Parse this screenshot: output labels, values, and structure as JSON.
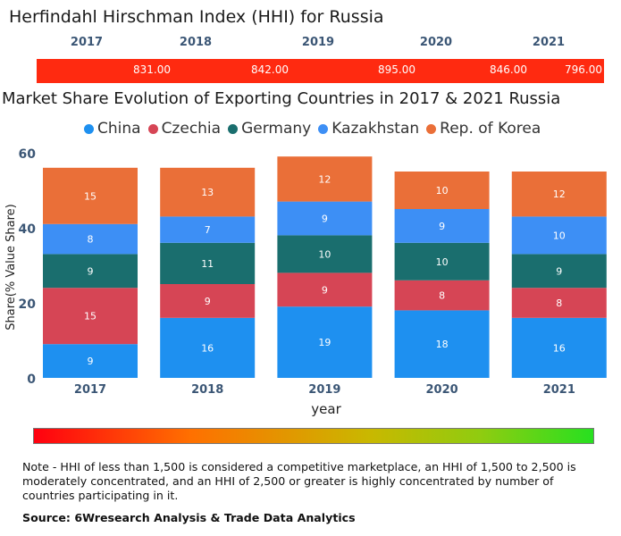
{
  "hhi": {
    "title": "Herfindahl Hirschman Index (HHI) for Russia",
    "years": [
      "2017",
      "2018",
      "2019",
      "2020",
      "2021"
    ],
    "values": [
      "831.00",
      "842.00",
      "895.00",
      "846.00",
      "796.00"
    ],
    "bar_color": "#ff2a10"
  },
  "chart_data": {
    "type": "bar",
    "stacked": true,
    "title": "Market Share Evolution of Exporting Countries in 2017 & 2021 Russia",
    "xlabel": "year",
    "ylabel": "Share(% Value Share)",
    "ylim": [
      0,
      60
    ],
    "yticks": [
      0,
      20,
      40,
      60
    ],
    "categories": [
      "2017",
      "2018",
      "2019",
      "2020",
      "2021"
    ],
    "series": [
      {
        "name": "China",
        "color": "#1e90f0",
        "values": [
          9,
          16,
          19,
          18,
          16
        ]
      },
      {
        "name": "Czechia",
        "color": "#d64555",
        "values": [
          15,
          9,
          9,
          8,
          8
        ]
      },
      {
        "name": "Germany",
        "color": "#1a6e6e",
        "values": [
          9,
          11,
          10,
          10,
          9
        ]
      },
      {
        "name": "Kazakhstan",
        "color": "#3d8ff5",
        "values": [
          8,
          7,
          9,
          9,
          10
        ]
      },
      {
        "name": "Rep. of Korea",
        "color": "#ea6f38",
        "values": [
          15,
          13,
          12,
          10,
          12
        ]
      }
    ]
  },
  "note": "Note - HHI of less than 1,500 is considered a competitive marketplace, an HHI of 1,500 to 2,500 is moderately concentrated, and an HHI of 2,500 or greater is highly concentrated by number of countries participating in it.",
  "source": "Source: 6Wresearch Analysis & Trade Data Analytics"
}
